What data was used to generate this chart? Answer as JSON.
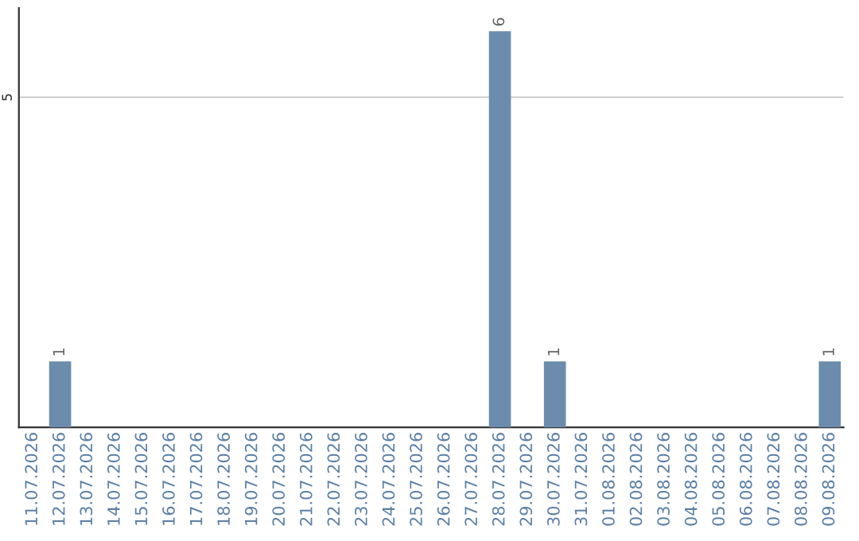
{
  "chart_data": {
    "type": "bar",
    "categories": [
      "11.07.2026",
      "12.07.2026",
      "13.07.2026",
      "14.07.2026",
      "15.07.2026",
      "16.07.2026",
      "17.07.2026",
      "18.07.2026",
      "19.07.2026",
      "20.07.2026",
      "21.07.2026",
      "22.07.2026",
      "23.07.2026",
      "24.07.2026",
      "25.07.2026",
      "26.07.2026",
      "27.07.2026",
      "28.07.2026",
      "29.07.2026",
      "30.07.2026",
      "31.07.2026",
      "01.08.2026",
      "02.08.2026",
      "03.08.2026",
      "04.08.2026",
      "05.08.2026",
      "06.08.2026",
      "07.08.2026",
      "08.08.2026",
      "09.08.2026"
    ],
    "values": [
      0,
      1,
      0,
      0,
      0,
      0,
      0,
      0,
      0,
      0,
      0,
      0,
      0,
      0,
      0,
      0,
      0,
      6,
      0,
      1,
      0,
      0,
      0,
      0,
      0,
      0,
      0,
      0,
      0,
      1
    ],
    "value_labels": [
      null,
      "1",
      null,
      null,
      null,
      null,
      null,
      null,
      null,
      null,
      null,
      null,
      null,
      null,
      null,
      null,
      null,
      "6",
      null,
      "1",
      null,
      null,
      null,
      null,
      null,
      null,
      null,
      null,
      null,
      "1"
    ],
    "color": "#6b8cad",
    "ylim": [
      0,
      6.35
    ],
    "yticks": [
      5
    ],
    "grid": "y",
    "legend": false
  }
}
